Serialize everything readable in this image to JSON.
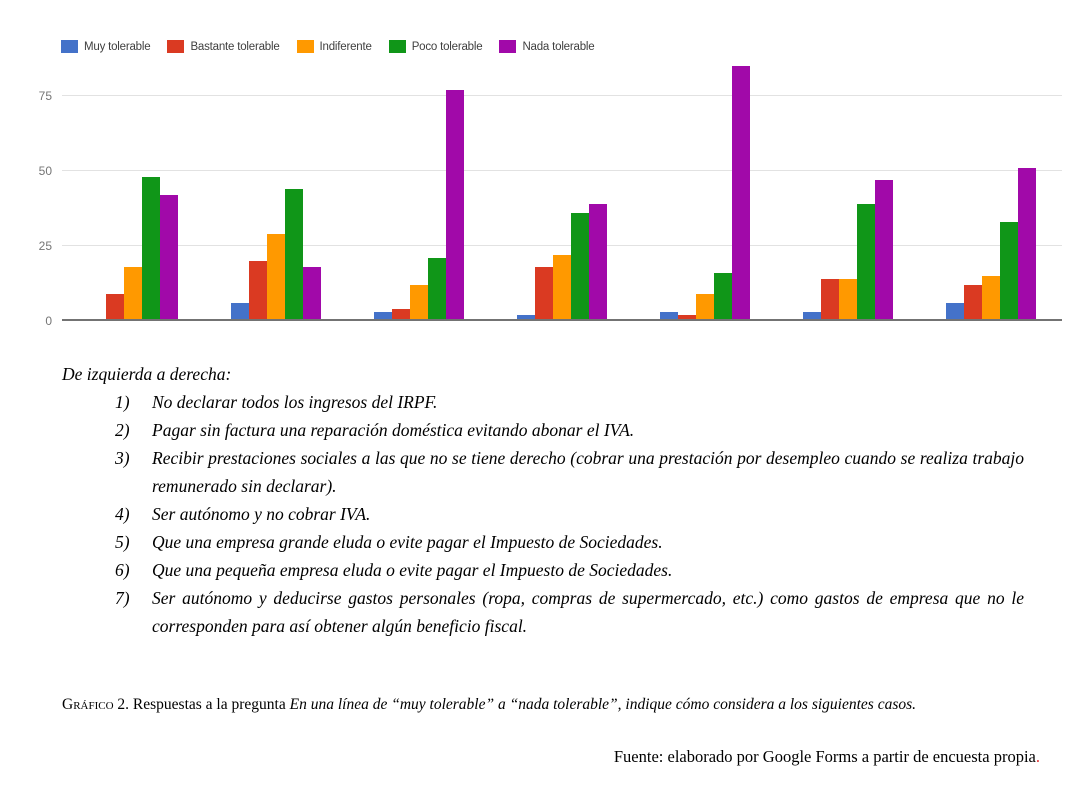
{
  "chart_data": {
    "type": "bar",
    "title": "",
    "xlabel": "",
    "ylabel": "",
    "categories": [
      "1",
      "2",
      "3",
      "4",
      "5",
      "6",
      "7"
    ],
    "series": [
      {
        "name": "Muy tolerable",
        "color": "#4472C9",
        "values": [
          0,
          6,
          3,
          2,
          3,
          3,
          6
        ]
      },
      {
        "name": "Bastante tolerable",
        "color": "#DA3A22",
        "values": [
          9,
          20,
          4,
          18,
          2,
          14,
          12
        ]
      },
      {
        "name": "Indiferente",
        "color": "#FF9900",
        "values": [
          18,
          29,
          12,
          22,
          9,
          14,
          15
        ]
      },
      {
        "name": "Poco tolerable",
        "color": "#109618",
        "values": [
          48,
          44,
          21,
          36,
          16,
          39,
          33
        ]
      },
      {
        "name": "Nada tolerable",
        "color": "#A109A9",
        "values": [
          42,
          18,
          77,
          39,
          85,
          47,
          51
        ]
      }
    ],
    "ylim": [
      0,
      90
    ],
    "y_ticks": [
      0,
      25,
      50,
      75
    ],
    "grid": true,
    "legend_position": "top",
    "x_tick_labels_visible": false
  },
  "description": {
    "intro": "De izquierda a derecha:",
    "items": [
      {
        "num": "1)",
        "text": "No declarar todos los ingresos del IRPF."
      },
      {
        "num": "2)",
        "text": "Pagar sin factura una reparación doméstica evitando abonar el IVA."
      },
      {
        "num": "3)",
        "text": "Recibir prestaciones sociales a las que no se tiene derecho (cobrar una prestación por desempleo cuando se realiza trabajo remunerado sin declarar)."
      },
      {
        "num": "4)",
        "text": "Ser autónomo y no cobrar IVA."
      },
      {
        "num": "5)",
        "text": "Que una empresa grande eluda o evite pagar el Impuesto de Sociedades."
      },
      {
        "num": "6)",
        "text": "Que una pequeña empresa eluda o evite pagar el Impuesto de Sociedades."
      },
      {
        "num": "7)",
        "text": "Ser autónomo y deducirse gastos personales (ropa, compras de supermercado, etc.) como gastos de empresa que no le corresponden para así obtener algún beneficio fiscal."
      }
    ]
  },
  "caption": {
    "label": "Gráfico",
    "rest": "2. Respuestas a la pregunta",
    "question": "En una línea de “muy tolerable” a “nada tolerable”, indique cómo considera a los siguientes casos."
  },
  "source": {
    "text": "Fuente: elaborado por Google Forms a partir de encuesta propia",
    "period": ".",
    "period_color": "#E03030"
  }
}
